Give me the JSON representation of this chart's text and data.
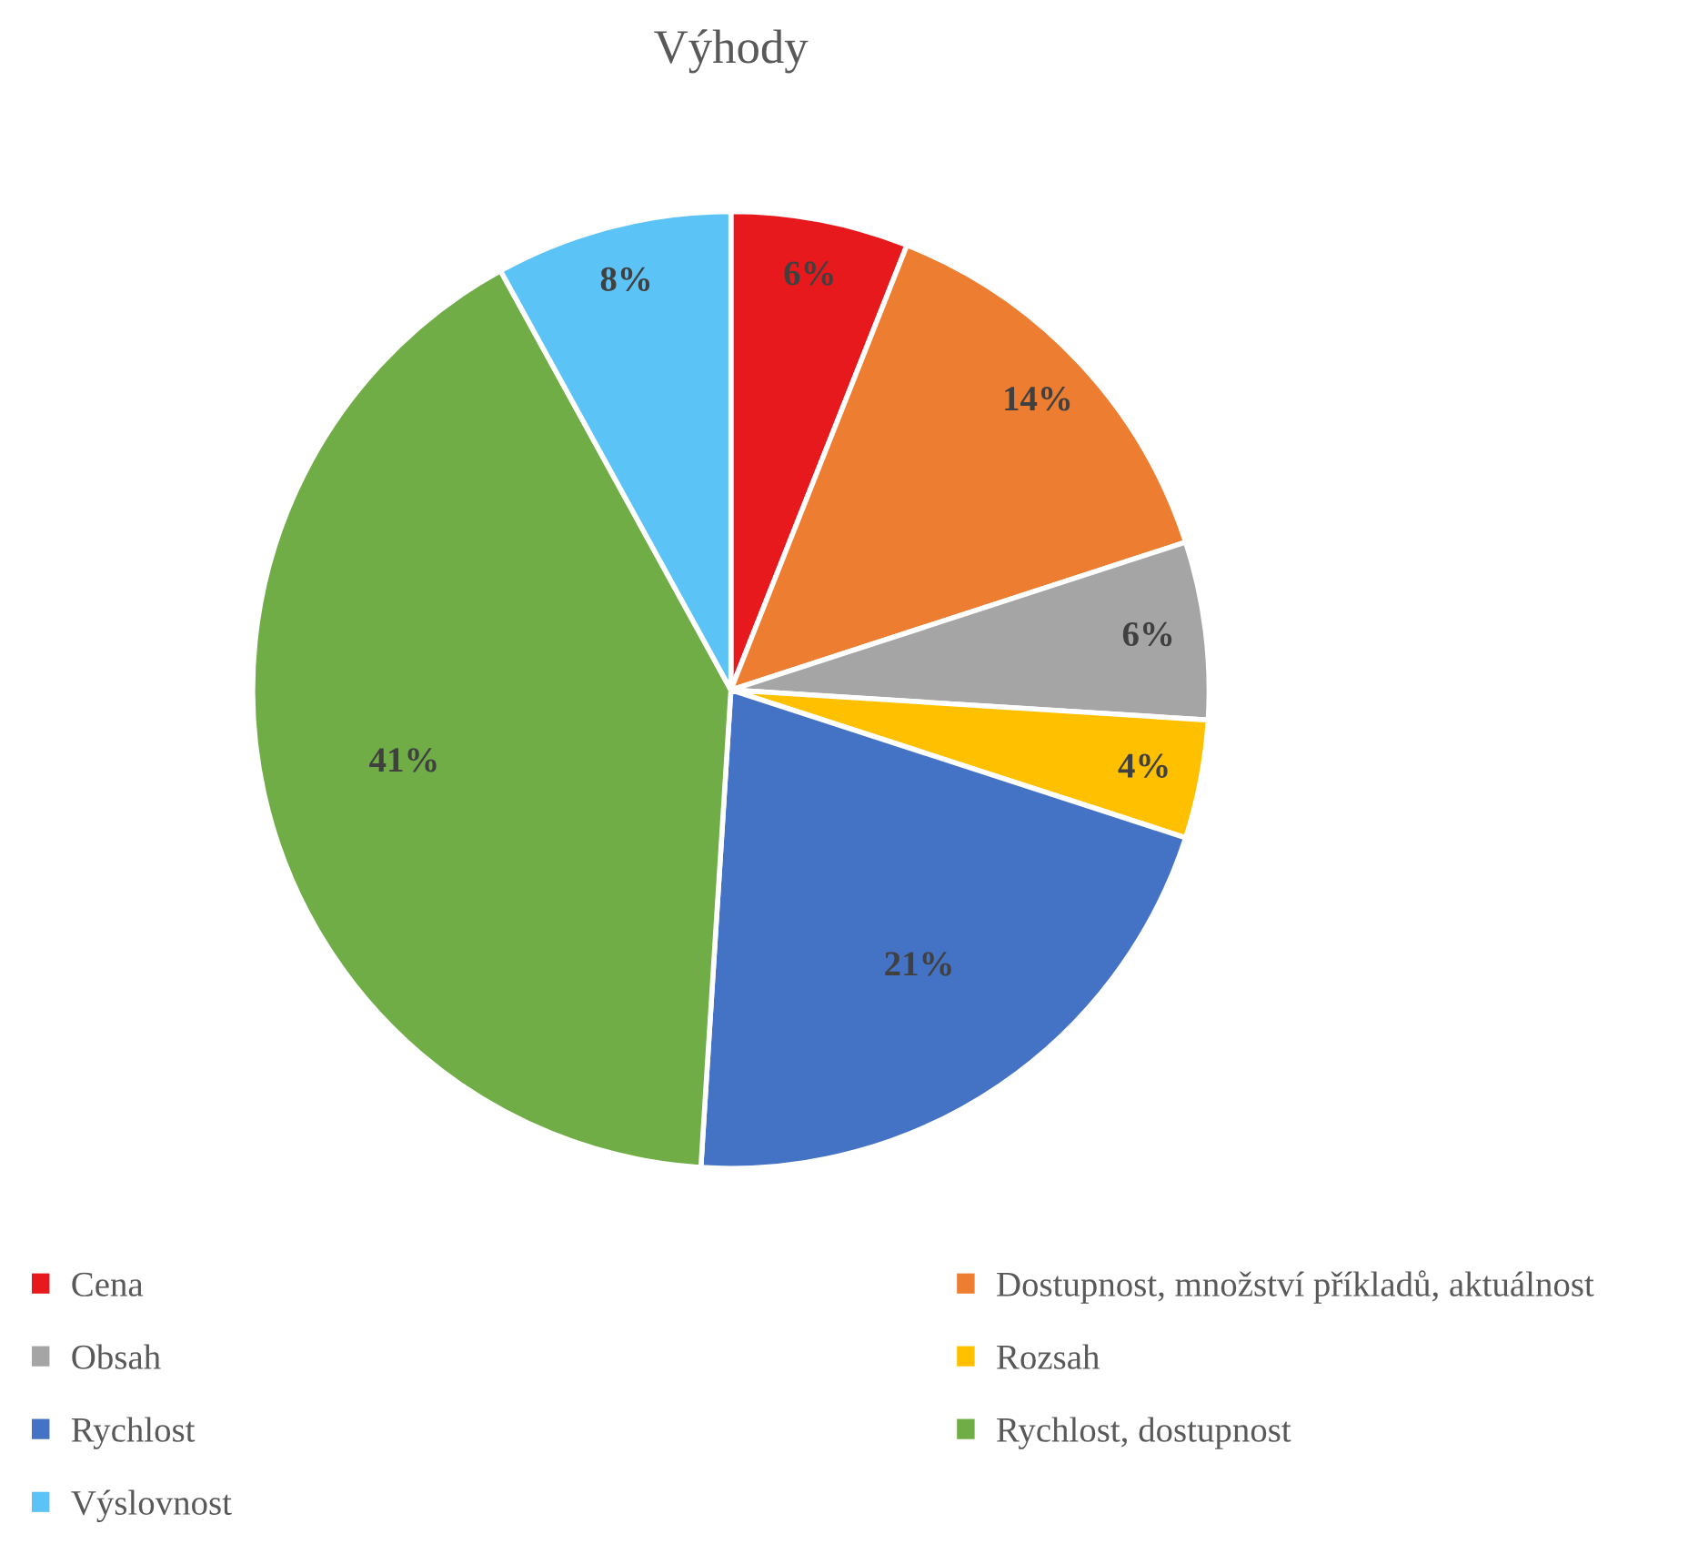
{
  "chart_data": {
    "type": "pie",
    "title": "Výhody",
    "categories": [
      "Cena",
      "Dostupnost, množství příkladů, aktuálnost",
      "Obsah",
      "Rozsah",
      "Rychlost",
      "Rychlost, dostupnost",
      "Výslovnost"
    ],
    "values": [
      6,
      14,
      6,
      4,
      21,
      41,
      8
    ],
    "value_labels": [
      "6%",
      "14%",
      "6%",
      "4%",
      "21%",
      "41%",
      "8%"
    ],
    "colors": [
      "#e8191c",
      "#ed7d31",
      "#a5a5a5",
      "#ffc000",
      "#4472c4",
      "#70ad47",
      "#5bc3f5"
    ],
    "legend": "bottom"
  }
}
